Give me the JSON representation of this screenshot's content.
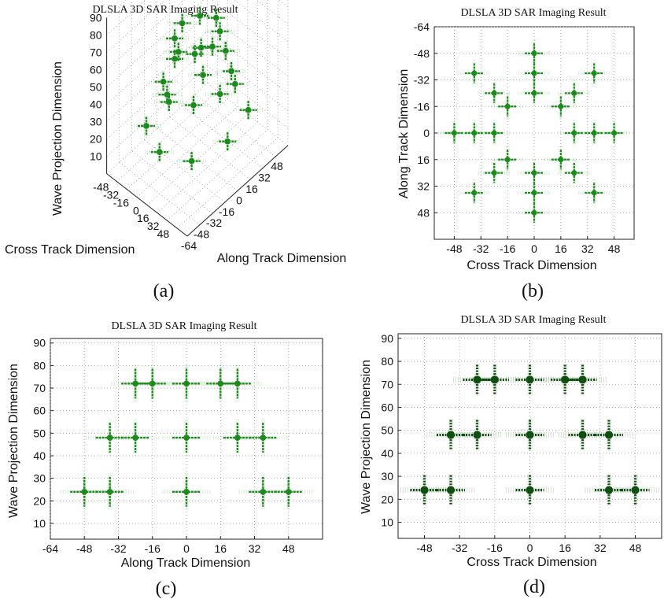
{
  "chart_data": [
    {
      "panel": "(a)",
      "type": "scatter",
      "projection": "3d",
      "title": "DLSLA 3D SAR Imaging Result",
      "xlabel": "Along Track Dimension",
      "ylabel": "Cross Track Dimension",
      "zlabel": "Wave Projection Dimension",
      "x_ticks": [
        "-64",
        "-48",
        "-32",
        "-16",
        "0",
        "16",
        "32",
        "48"
      ],
      "y_ticks": [
        "48",
        "32",
        "16",
        "0",
        "-16",
        "-32",
        "-48"
      ],
      "z_ticks": [
        "10",
        "20",
        "30",
        "40",
        "50",
        "60",
        "70",
        "80",
        "90"
      ],
      "xlim": [
        -64,
        64
      ],
      "ylim": [
        -64,
        64
      ],
      "zlim": [
        0,
        90
      ],
      "grid": true,
      "marker_color": "#1e8a1e",
      "points": [
        {
          "x": -48,
          "y": 0,
          "z": 24
        },
        {
          "x": -36,
          "y": 36,
          "z": 24
        },
        {
          "x": -36,
          "y": -36,
          "z": 24
        },
        {
          "x": 0,
          "y": 48,
          "z": 24
        },
        {
          "x": 0,
          "y": -48,
          "z": 24
        },
        {
          "x": 36,
          "y": 36,
          "z": 24
        },
        {
          "x": 36,
          "y": -36,
          "z": 24
        },
        {
          "x": 48,
          "y": 0,
          "z": 24
        },
        {
          "x": -36,
          "y": 0,
          "z": 48
        },
        {
          "x": -24,
          "y": 24,
          "z": 48
        },
        {
          "x": -24,
          "y": -24,
          "z": 48
        },
        {
          "x": 0,
          "y": 36,
          "z": 48
        },
        {
          "x": 0,
          "y": -36,
          "z": 48
        },
        {
          "x": 24,
          "y": 24,
          "z": 48
        },
        {
          "x": 24,
          "y": -24,
          "z": 48
        },
        {
          "x": 36,
          "y": 0,
          "z": 48
        },
        {
          "x": -24,
          "y": 0,
          "z": 72
        },
        {
          "x": -16,
          "y": 16,
          "z": 72
        },
        {
          "x": -16,
          "y": -16,
          "z": 72
        },
        {
          "x": 0,
          "y": 24,
          "z": 72
        },
        {
          "x": 0,
          "y": -24,
          "z": 72
        },
        {
          "x": 16,
          "y": 16,
          "z": 72
        },
        {
          "x": 16,
          "y": -16,
          "z": 72
        },
        {
          "x": 24,
          "y": 0,
          "z": 72
        }
      ]
    },
    {
      "panel": "(b)",
      "type": "scatter",
      "title": "DLSLA 3D SAR Imaging Result",
      "xlabel": "Cross Track Dimension",
      "ylabel": "Along Track Dimension",
      "x_ticks": [
        "-48",
        "-32",
        "-16",
        "0",
        "16",
        "32",
        "48"
      ],
      "y_ticks": [
        "-64",
        "-48",
        "-32",
        "-16",
        "0",
        "16",
        "32",
        "48"
      ],
      "xlim": [
        -60,
        60
      ],
      "ylim": [
        -64,
        64
      ],
      "y_reversed": true,
      "grid": true,
      "marker_color": "#1e8a1e",
      "points": [
        {
          "x": -48,
          "y": 0
        },
        {
          "x": -36,
          "y": 0
        },
        {
          "x": -24,
          "y": 0
        },
        {
          "x": 24,
          "y": 0
        },
        {
          "x": 36,
          "y": 0
        },
        {
          "x": 48,
          "y": 0
        },
        {
          "x": 0,
          "y": -48
        },
        {
          "x": 0,
          "y": -36
        },
        {
          "x": 0,
          "y": -24
        },
        {
          "x": 0,
          "y": 24
        },
        {
          "x": 0,
          "y": 36
        },
        {
          "x": 0,
          "y": 48
        },
        {
          "x": -36,
          "y": -36
        },
        {
          "x": -24,
          "y": -24
        },
        {
          "x": -16,
          "y": -16
        },
        {
          "x": 36,
          "y": -36
        },
        {
          "x": 24,
          "y": -24
        },
        {
          "x": 16,
          "y": -16
        },
        {
          "x": -36,
          "y": 36
        },
        {
          "x": -24,
          "y": 24
        },
        {
          "x": -16,
          "y": 16
        },
        {
          "x": 36,
          "y": 36
        },
        {
          "x": 24,
          "y": 24
        },
        {
          "x": 16,
          "y": 16
        }
      ]
    },
    {
      "panel": "(c)",
      "type": "scatter",
      "title": "DLSLA 3D SAR Imaging Result",
      "xlabel": "Along Track Dimension",
      "ylabel": "Wave Projection Dimension",
      "x_ticks": [
        "-64",
        "-48",
        "-32",
        "-16",
        "0",
        "16",
        "32",
        "48"
      ],
      "y_ticks": [
        "10",
        "20",
        "30",
        "40",
        "50",
        "60",
        "70",
        "80",
        "90"
      ],
      "xlim": [
        -64,
        64
      ],
      "ylim": [
        3,
        92
      ],
      "grid": true,
      "marker_color": "#1e8a1e",
      "points": [
        {
          "x": -48,
          "y": 24
        },
        {
          "x": -36,
          "y": 24
        },
        {
          "x": 0,
          "y": 24
        },
        {
          "x": 36,
          "y": 24
        },
        {
          "x": 48,
          "y": 24
        },
        {
          "x": -36,
          "y": 48
        },
        {
          "x": -24,
          "y": 48
        },
        {
          "x": 0,
          "y": 48
        },
        {
          "x": 24,
          "y": 48
        },
        {
          "x": 36,
          "y": 48
        },
        {
          "x": -24,
          "y": 72
        },
        {
          "x": -16,
          "y": 72
        },
        {
          "x": 0,
          "y": 72
        },
        {
          "x": 16,
          "y": 72
        },
        {
          "x": 24,
          "y": 72
        }
      ]
    },
    {
      "panel": "(d)",
      "type": "scatter",
      "title": "DLSLA 3D SAR Imaging Result",
      "xlabel": "Cross Track Dimension",
      "ylabel": "Wave Projection Dimension",
      "x_ticks": [
        "-48",
        "-32",
        "-16",
        "0",
        "16",
        "32",
        "48"
      ],
      "y_ticks": [
        "10",
        "20",
        "30",
        "40",
        "50",
        "60",
        "70",
        "80",
        "90"
      ],
      "xlim": [
        -60,
        60
      ],
      "ylim": [
        3,
        92
      ],
      "grid": true,
      "marker_color": "#0f4f0f",
      "points": [
        {
          "x": -48,
          "y": 24
        },
        {
          "x": -36,
          "y": 24
        },
        {
          "x": 0,
          "y": 24
        },
        {
          "x": 36,
          "y": 24
        },
        {
          "x": 48,
          "y": 24
        },
        {
          "x": -36,
          "y": 48
        },
        {
          "x": -24,
          "y": 48
        },
        {
          "x": 0,
          "y": 48
        },
        {
          "x": 24,
          "y": 48
        },
        {
          "x": 36,
          "y": 48
        },
        {
          "x": -24,
          "y": 72
        },
        {
          "x": -16,
          "y": 72
        },
        {
          "x": 0,
          "y": 72
        },
        {
          "x": 16,
          "y": 72
        },
        {
          "x": 24,
          "y": 72
        }
      ]
    }
  ]
}
